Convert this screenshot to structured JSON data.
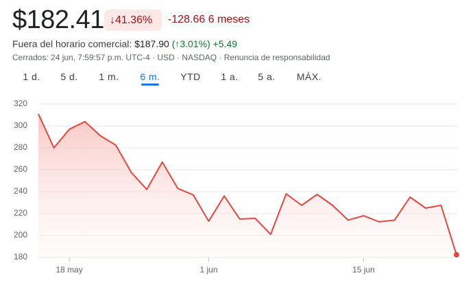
{
  "header": {
    "price": "$182.41",
    "change_pct": "41.36%",
    "change_abs": "-128.66",
    "period": "6 meses",
    "after_hours_label": "Fuera del horario comercial:",
    "after_hours_price": "$187.90",
    "after_hours_pct": "3.01%",
    "after_hours_abs": "+5.49",
    "status": "Cerrados: 24 jun, 7:59:57 p.m. UTC-4 · USD · NASDAQ · Renuncia de responsabilidad"
  },
  "tabs": [
    "1 d.",
    "5 d.",
    "1 m.",
    "6 m.",
    "YTD",
    "1 a.",
    "5 a.",
    "MÁX."
  ],
  "chart_data": {
    "type": "line",
    "categories": [
      null,
      null,
      "18 may",
      null,
      null,
      null,
      null,
      null,
      null,
      null,
      null,
      "1 jun",
      null,
      null,
      null,
      null,
      null,
      null,
      null,
      null,
      null,
      "15 jun",
      null,
      null,
      null,
      null,
      null,
      null
    ],
    "values": [
      311,
      280,
      297,
      304,
      291,
      282.5,
      257.5,
      242,
      267,
      243,
      237,
      213,
      236,
      215,
      215.6,
      201,
      238,
      227.5,
      237.5,
      227.5,
      214,
      218,
      212.5,
      214,
      235,
      225,
      227.5,
      182.41
    ],
    "color": "#e5463b",
    "ylim": [
      180,
      320
    ],
    "yticks": [
      180,
      200,
      220,
      240,
      260,
      280,
      300,
      320
    ],
    "grid": true
  }
}
